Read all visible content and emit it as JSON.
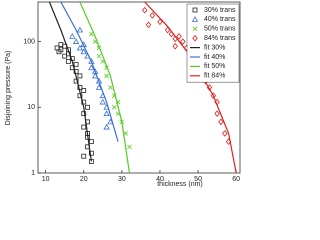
{
  "chart_data": {
    "type": "scatter",
    "xlabel": "thickness (nm)",
    "ylabel": "Disjoining pressure (Pa)",
    "xlim": [
      8,
      61
    ],
    "xticks": [
      10,
      20,
      30,
      40,
      50,
      60
    ],
    "ylim": [
      1,
      400
    ],
    "yticks": [
      1,
      10,
      100
    ],
    "ylog": true,
    "legend": "upper right",
    "series": [
      {
        "name": "30% trans",
        "color": "#222222",
        "marker": "square",
        "x": [
          13,
          14,
          13.5,
          15,
          14,
          16,
          15,
          16,
          17,
          18,
          17,
          18,
          19,
          18,
          19,
          20,
          19,
          20,
          21,
          20,
          21,
          20,
          21,
          22,
          21,
          22,
          20,
          22,
          21,
          16
        ],
        "values": [
          80,
          75,
          70,
          85,
          90,
          75,
          60,
          50,
          55,
          45,
          40,
          35,
          30,
          25,
          20,
          18,
          15,
          12,
          10,
          8,
          6,
          5,
          4,
          3,
          2.5,
          2,
          1.8,
          1.5,
          3.5,
          65
        ]
      },
      {
        "name": "40% trans",
        "color": "#3a6fd8",
        "marker": "triangle",
        "x": [
          17,
          18,
          19,
          19,
          20,
          20,
          21,
          22,
          22,
          23,
          23,
          24,
          24,
          25,
          25,
          26,
          26,
          27,
          26
        ],
        "values": [
          120,
          100,
          80,
          150,
          90,
          70,
          60,
          50,
          40,
          35,
          30,
          25,
          20,
          15,
          12,
          10,
          8,
          6,
          5
        ]
      },
      {
        "name": "50% trans",
        "color": "#55cc22",
        "marker": "x",
        "x": [
          22,
          23,
          24,
          24,
          25,
          26,
          26,
          27,
          28,
          28,
          29,
          30,
          31,
          32,
          29
        ],
        "values": [
          130,
          100,
          80,
          60,
          50,
          40,
          30,
          20,
          15,
          10,
          8,
          6,
          4,
          2.5,
          12
        ]
      },
      {
        "name": "84% trans",
        "color": "#e02020",
        "marker": "diamond",
        "x": [
          36,
          38,
          40,
          42,
          43,
          44,
          45,
          46,
          47,
          48,
          49,
          50,
          51,
          52,
          53,
          54,
          55,
          55,
          56,
          57,
          58,
          37,
          44
        ],
        "values": [
          300,
          250,
          200,
          150,
          130,
          110,
          120,
          100,
          80,
          60,
          50,
          40,
          30,
          25,
          20,
          15,
          12,
          8,
          6,
          4,
          3,
          180,
          85
        ]
      },
      {
        "name": "fit 30%",
        "color": "#222222",
        "marker": "line",
        "x": [
          11,
          14,
          17,
          20,
          22
        ],
        "values": [
          400,
          150,
          50,
          10,
          1.5
        ]
      },
      {
        "name": "fit 40%",
        "color": "#3a6fd8",
        "marker": "line",
        "x": [
          14,
          18,
          22,
          26,
          29
        ],
        "values": [
          400,
          150,
          50,
          12,
          3
        ]
      },
      {
        "name": "fit 50%",
        "color": "#55cc22",
        "marker": "line",
        "x": [
          19,
          23,
          27,
          30,
          32
        ],
        "values": [
          400,
          120,
          30,
          6,
          1
        ]
      },
      {
        "name": "fit 84%",
        "color": "#e02020",
        "marker": "line",
        "x": [
          36,
          42,
          48,
          54,
          58,
          60
        ],
        "values": [
          400,
          170,
          60,
          15,
          4,
          1
        ]
      }
    ]
  }
}
